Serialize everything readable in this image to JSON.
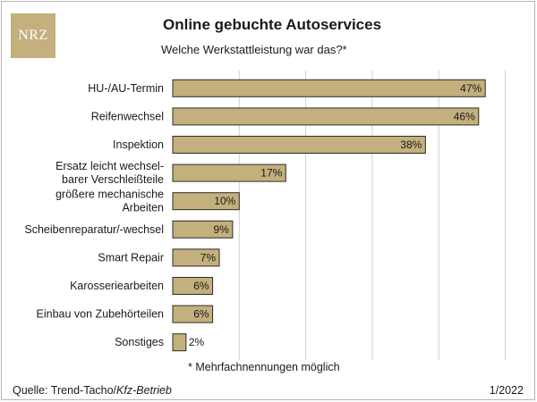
{
  "logo": {
    "text": "NRZ",
    "color": "#c4b07d"
  },
  "chart_data": {
    "type": "bar",
    "orientation": "horizontal",
    "title": "Online gebuchte Autoservices",
    "subtitle": "Welche Werkstattleistung war das?*",
    "categories": [
      [
        "HU-/AU-Termin"
      ],
      [
        "Reifenwechsel"
      ],
      [
        "Inspektion"
      ],
      [
        "Ersatz leicht wechsel-",
        "barer Verschleißteile"
      ],
      [
        "größere mechanische",
        "Arbeiten"
      ],
      [
        "Scheibenreparatur/-wechsel"
      ],
      [
        "Smart Repair"
      ],
      [
        "Karosseriearbeiten"
      ],
      [
        "Einbau von Zubehörteilen"
      ],
      [
        "Sonstiges"
      ]
    ],
    "values": [
      47,
      46,
      38,
      17,
      10,
      9,
      7,
      6,
      6,
      2
    ],
    "labels": [
      "47%",
      "46%",
      "38%",
      "17%",
      "10%",
      "9%",
      "7%",
      "6%",
      "6%",
      "2%"
    ],
    "unit": "%",
    "xlim": [
      0,
      50
    ],
    "gridlines": [
      10,
      20,
      30,
      40,
      50
    ],
    "bar_color": "#c4b07d"
  },
  "footnote": "* Mehrfachnennungen möglich",
  "source_prefix": "Quelle: Trend-Tacho/",
  "source_italic": "Kfz-Betrieb",
  "date": "1/2022"
}
